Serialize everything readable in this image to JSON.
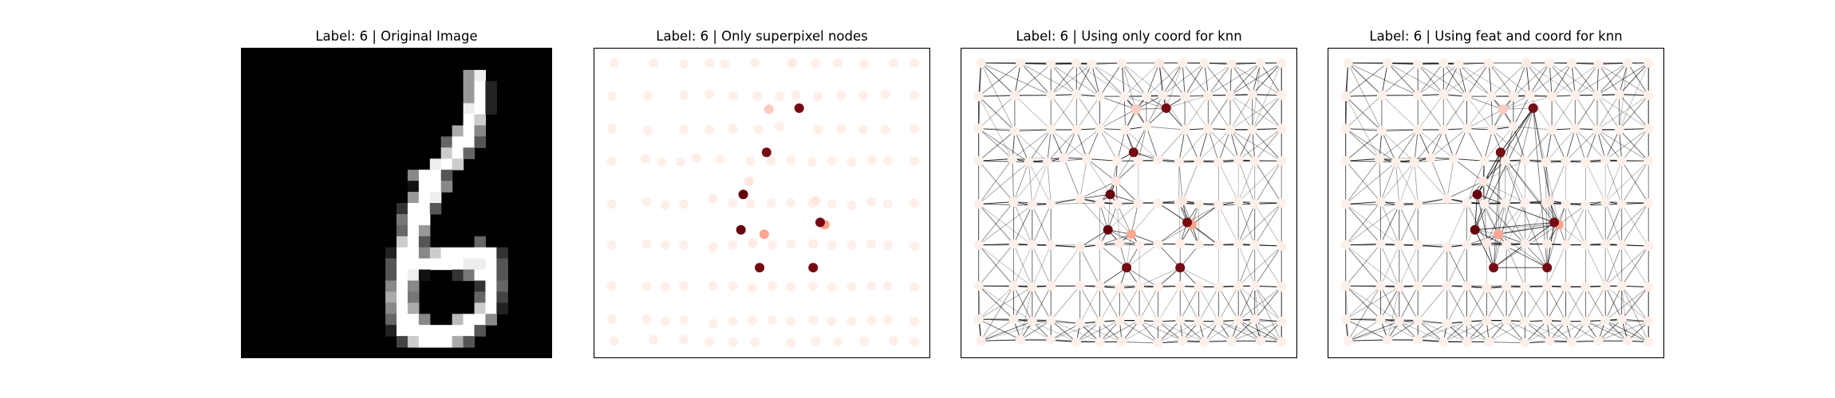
{
  "chart_data": [
    {
      "type": "image",
      "title": "Label: 6 | Original Image",
      "pixels": [
        "0000000000000000000000000000",
        "0000000000000000000000000000",
        "000000000000000000009E000000",
        "000000000000000000009F200000",
        "000000000000000000009F200000",
        "00000000000000000000EF200000",
        "00000000000000000000FC000000",
        "0000000000000000000AF8000000",
        "0000000000000000006FF5000000",
        "000000000000000000CF60000000",
        "00000000000000000EFC00000000",
        "0000000000000008FF5000000000",
        "0000000000000001FF8000000000",
        "0000000000000009FE0000000000",
        "000000000000003FF50000000000",
        "000000000000007FF00000000000",
        "000000000000006F900000000000",
        "00000000000000CF500006000000",
        "00000000000002FF8CFFFFF30000",
        "00000000000005FFFFFFEEF50000",
        "00000000000005FE10037FF50000",
        "00000000000008F8000003F60000",
        "0000000000000AF7000006F40000",
        "00000000000008FA00000CF20000",
        "00000000000006FF800BFF800000",
        "00000000000002FFFFFFF5000000",
        "000000000000004CFFFA50000000",
        "0000000000000000000000000000"
      ]
    },
    {
      "type": "scatter",
      "title": "Label: 6 | Only superpixel nodes",
      "points": [
        [
          0.8,
          9.7,
          0.02
        ],
        [
          3.7,
          9.5,
          0.02
        ],
        [
          5.1,
          9.8,
          0.02
        ],
        [
          6.7,
          9.8,
          0.02
        ],
        [
          8.1,
          9.4,
          0.03
        ],
        [
          10.1,
          9.5,
          0.02
        ],
        [
          12.7,
          9.7,
          0.02
        ],
        [
          14.5,
          9.7,
          0.02
        ],
        [
          16.2,
          9.6,
          0.02
        ],
        [
          18.0,
          9.8,
          0.02
        ],
        [
          19.7,
          9.7,
          0.02
        ],
        [
          21.4,
          9.8,
          0.02
        ],
        [
          23.1,
          9.6,
          0.02
        ],
        [
          24.5,
          9.7,
          0.02
        ],
        [
          26.8,
          9.7,
          0.02
        ],
        [
          0.8,
          13.7,
          0.02
        ],
        [
          3.8,
          13.5,
          0.02
        ],
        [
          5.4,
          13.8,
          0.02
        ],
        [
          7.0,
          13.7,
          0.02
        ],
        [
          9.5,
          13.2,
          0.03
        ],
        [
          11.2,
          13.6,
          0.02
        ],
        [
          12.7,
          13.7,
          0.02
        ],
        [
          14.5,
          13.6,
          0.02
        ],
        [
          16.2,
          13.6,
          0.02
        ],
        [
          18.0,
          13.6,
          0.02
        ],
        [
          19.7,
          13.7,
          0.02
        ],
        [
          21.4,
          13.8,
          0.02
        ],
        [
          23.1,
          13.5,
          0.02
        ],
        [
          24.5,
          13.7,
          0.02
        ],
        [
          26.8,
          13.6,
          0.02
        ],
        [
          0.8,
          17.5,
          0.02
        ],
        [
          3.8,
          17.4,
          0.02
        ],
        [
          5.4,
          17.5,
          0.02
        ],
        [
          7.0,
          17.5,
          0.02
        ],
        [
          9.5,
          17.7,
          0.03
        ],
        [
          11.2,
          17.5,
          0.02
        ],
        [
          12.9,
          17.3,
          0.04
        ],
        [
          14.6,
          17.5,
          0.02
        ],
        [
          16.2,
          17.4,
          0.02
        ],
        [
          18.1,
          17.4,
          0.03
        ],
        [
          19.7,
          17.5,
          0.02
        ],
        [
          21.4,
          17.5,
          0.02
        ],
        [
          23.1,
          17.4,
          0.02
        ],
        [
          24.5,
          17.5,
          0.02
        ],
        [
          26.8,
          17.6,
          0.02
        ],
        [
          0.8,
          21.3,
          0.02
        ],
        [
          3.8,
          21.3,
          0.02
        ],
        [
          5.4,
          21.4,
          0.02
        ],
        [
          7.0,
          21.3,
          0.02
        ],
        [
          9.5,
          21.3,
          0.02
        ],
        [
          11.2,
          21.3,
          0.02
        ],
        [
          12.9,
          21.5,
          0.03
        ],
        [
          14.6,
          21.3,
          0.02
        ],
        [
          16.2,
          21.4,
          0.02
        ],
        [
          18.1,
          21.3,
          0.02
        ],
        [
          19.7,
          21.4,
          0.02
        ],
        [
          21.4,
          21.4,
          0.02
        ],
        [
          23.1,
          21.3,
          0.02
        ],
        [
          24.5,
          21.3,
          0.02
        ],
        [
          26.8,
          21.4,
          0.02
        ],
        [
          0.8,
          24.4,
          0.02
        ],
        [
          3.8,
          24.4,
          0.02
        ],
        [
          5.4,
          24.6,
          0.02
        ],
        [
          7.0,
          24.5,
          0.02
        ],
        [
          9.5,
          24.8,
          0.02
        ],
        [
          11.2,
          24.6,
          0.02
        ],
        [
          12.9,
          24.5,
          0.02
        ],
        [
          14.6,
          24.5,
          0.02
        ],
        [
          16.2,
          24.6,
          0.02
        ],
        [
          18.1,
          24.5,
          0.02
        ],
        [
          19.7,
          24.6,
          0.02
        ],
        [
          21.4,
          24.6,
          0.02
        ],
        [
          23.1,
          24.5,
          0.02
        ],
        [
          24.5,
          24.4,
          0.02
        ],
        [
          26.8,
          24.6,
          0.02
        ],
        [
          1.0,
          26.4,
          0.02
        ],
        [
          4.4,
          26.3,
          0.02
        ],
        [
          7.0,
          26.3,
          0.02
        ],
        [
          9.2,
          26.5,
          0.02
        ],
        [
          11.2,
          26.5,
          0.02
        ],
        [
          13.1,
          26.5,
          0.02
        ],
        [
          16.2,
          26.6,
          0.02
        ],
        [
          18.3,
          26.4,
          0.02
        ],
        [
          20.2,
          26.5,
          0.02
        ],
        [
          22.5,
          26.4,
          0.02
        ],
        [
          25.0,
          26.4,
          0.02
        ],
        [
          26.8,
          26.5,
          0.02
        ],
        [
          1.0,
          0.6,
          0.02
        ],
        [
          4.4,
          0.6,
          0.02
        ],
        [
          7.0,
          0.7,
          0.02
        ],
        [
          9.2,
          0.6,
          0.02
        ],
        [
          10.5,
          0.7,
          0.02
        ],
        [
          13.1,
          0.6,
          0.02
        ],
        [
          16.3,
          0.6,
          0.04
        ],
        [
          18.3,
          0.6,
          0.02
        ],
        [
          20.2,
          0.6,
          0.02
        ],
        [
          22.5,
          0.7,
          0.02
        ],
        [
          25.0,
          0.6,
          0.02
        ],
        [
          26.8,
          0.6,
          0.02
        ],
        [
          0.8,
          3.7,
          0.02
        ],
        [
          3.9,
          3.6,
          0.02
        ],
        [
          7.0,
          3.6,
          0.02
        ],
        [
          9.2,
          3.5,
          0.02
        ],
        [
          11.2,
          3.7,
          0.02
        ],
        [
          13.3,
          3.7,
          0.02
        ],
        [
          15.2,
          3.7,
          0.02
        ],
        [
          16.6,
          3.6,
          0.02
        ],
        [
          18.5,
          3.7,
          0.02
        ],
        [
          20.5,
          3.6,
          0.02
        ],
        [
          22.4,
          3.6,
          0.02
        ],
        [
          24.3,
          3.5,
          0.02
        ],
        [
          26.8,
          3.6,
          0.02
        ],
        [
          0.8,
          6.7,
          0.02
        ],
        [
          3.9,
          6.9,
          0.02
        ],
        [
          7.0,
          6.8,
          0.02
        ],
        [
          9.2,
          6.8,
          0.02
        ],
        [
          11.2,
          6.7,
          0.02
        ],
        [
          13.4,
          6.8,
          0.02
        ],
        [
          15.2,
          6.5,
          0.02
        ],
        [
          18.5,
          6.8,
          0.02
        ],
        [
          20.5,
          6.7,
          0.02
        ],
        [
          22.4,
          6.8,
          0.02
        ],
        [
          24.3,
          6.8,
          0.02
        ],
        [
          26.8,
          6.7,
          0.02
        ],
        [
          14.3,
          4.9,
          0.15
        ],
        [
          13.9,
          16.5,
          0.28
        ],
        [
          19.1,
          15.6,
          0.3
        ],
        [
          12.6,
          11.6,
          0.05
        ],
        [
          18.3,
          13.4,
          0.05
        ],
        [
          16.9,
          4.8,
          0.95
        ],
        [
          14.1,
          8.9,
          0.95
        ],
        [
          12.1,
          12.8,
          1.0
        ],
        [
          11.9,
          16.1,
          1.0
        ],
        [
          18.7,
          15.4,
          0.95
        ],
        [
          13.5,
          19.6,
          0.95
        ],
        [
          18.1,
          19.6,
          0.95
        ]
      ]
    },
    {
      "type": "graph",
      "title": "Label: 6 | Using only coord for knn",
      "knn": 8
    },
    {
      "type": "graph",
      "title": "Label: 6 | Using feat and coord for knn",
      "knn": 8,
      "feature_weight": 20
    }
  ],
  "colors": {
    "node_low": "#fff5f0",
    "node_mid": "#fb6a4a",
    "node_high": "#67000d",
    "edge": "#000000",
    "frame": "#000000"
  }
}
